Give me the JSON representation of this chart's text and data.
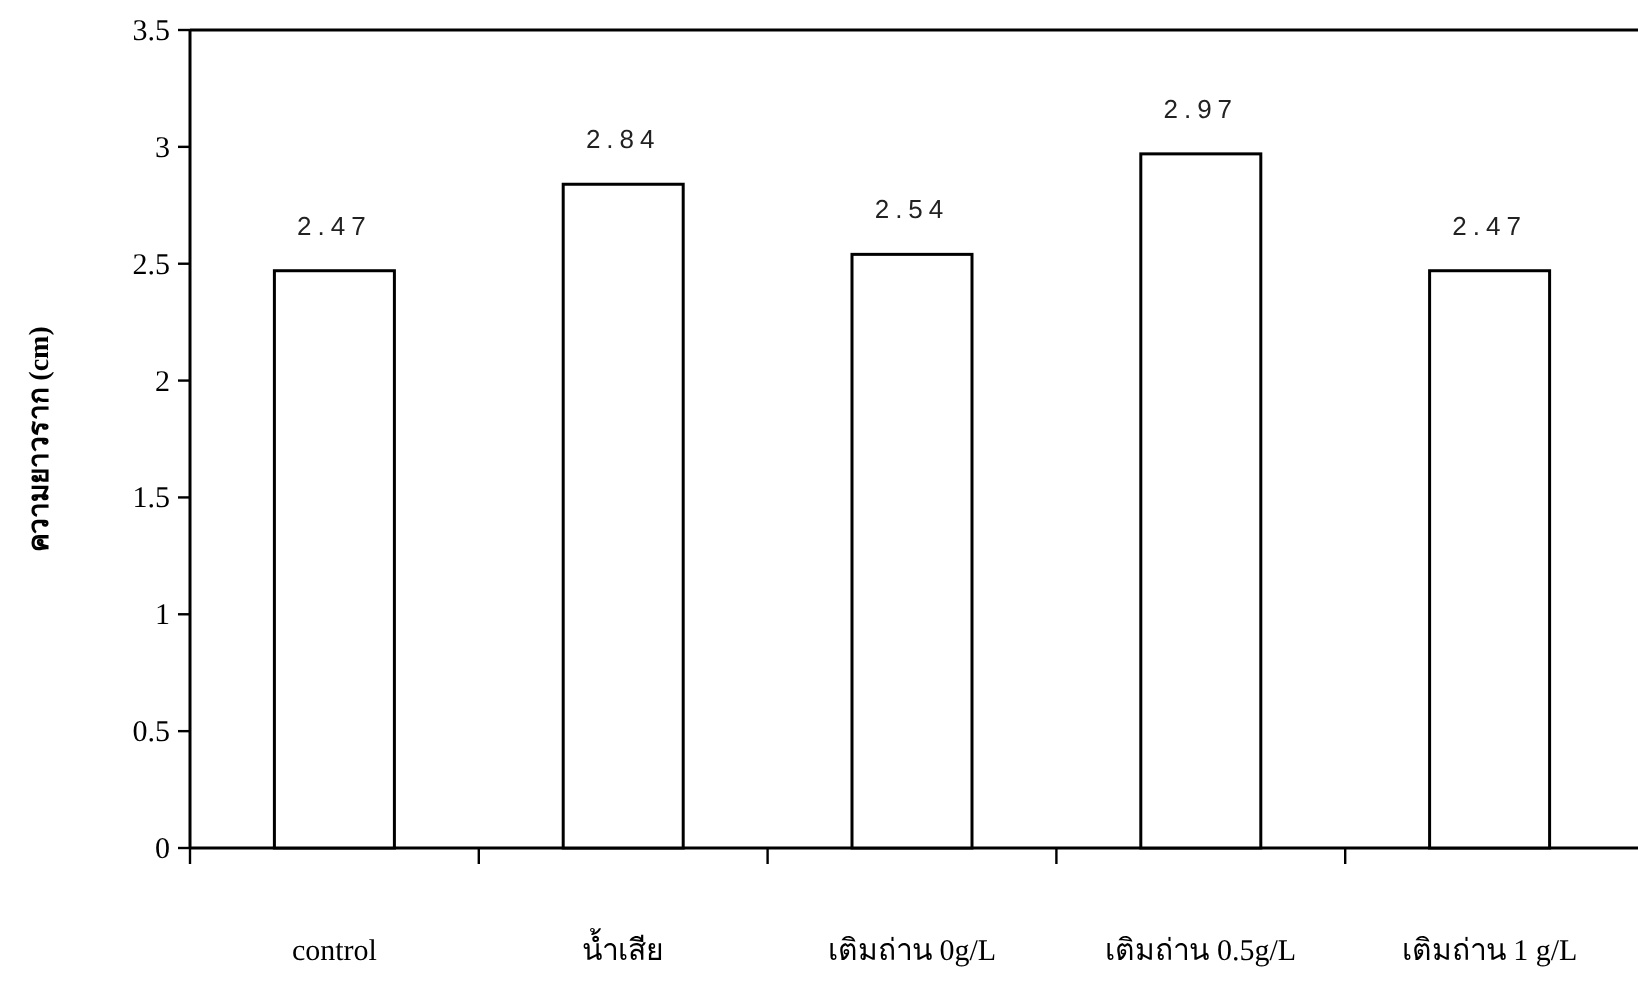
{
  "chart_data": {
    "type": "bar",
    "ylabel": "ความยาวราก (cm)",
    "categories": [
      "control",
      "น้ำเสีย",
      "เติมถ่าน 0g/L",
      "เติมถ่าน 0.5g/L",
      "เติมถ่าน 1 g/L"
    ],
    "values": [
      2.47,
      2.84,
      2.54,
      2.97,
      2.47
    ],
    "color": "#ffffff",
    "ylim": [
      0,
      3.5
    ],
    "yticks": [
      0,
      0.5,
      1,
      1.5,
      2,
      2.5,
      3,
      3.5
    ],
    "data_labels": true,
    "grid": false
  }
}
